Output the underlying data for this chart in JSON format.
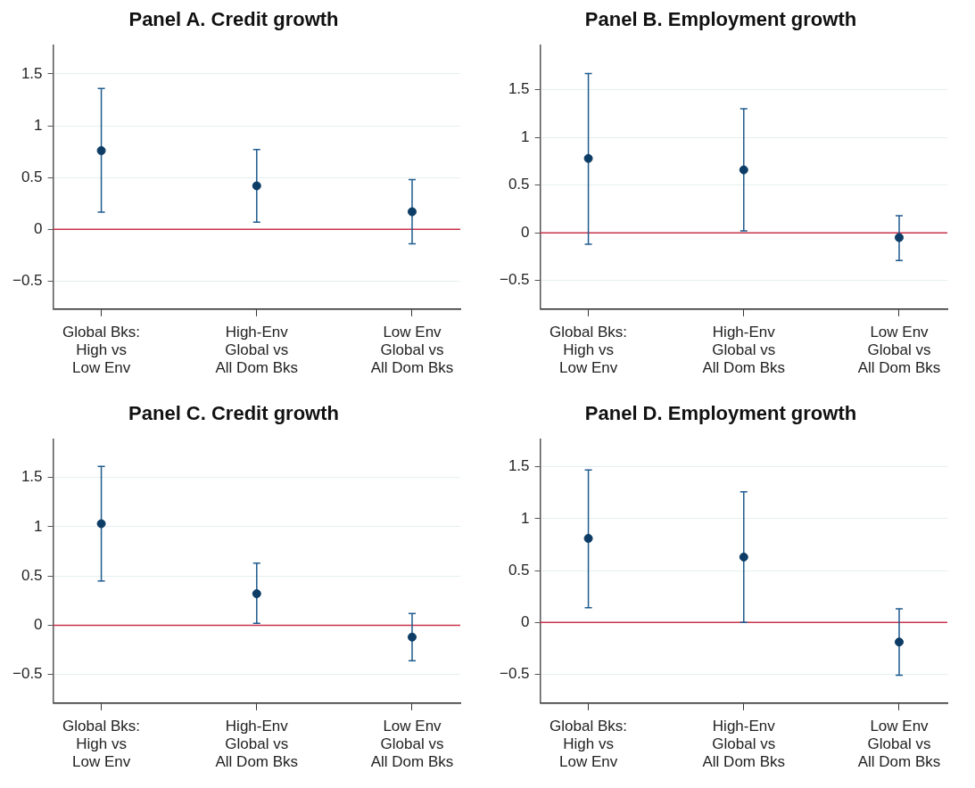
{
  "chart_data": [
    {
      "type": "scatter",
      "title": "Panel A. Credit growth",
      "categories": [
        "Global Bks:\nHigh vs\nLow Env",
        "High-Env\nGlobal vs\nAll Dom Bks",
        "Low Env\nGlobal vs\nAll Dom Bks"
      ],
      "series": [
        {
          "color": "#0d3d66",
          "values": [
            0.76,
            0.42,
            0.17
          ],
          "errors": [
            [
              0.165,
              1.36
            ],
            [
              0.07,
              0.77
            ],
            [
              -0.14,
              0.48
            ]
          ]
        }
      ],
      "ylim": [
        -0.77,
        1.78
      ],
      "yticks": [
        -0.5,
        0,
        0.5,
        1,
        1.5
      ],
      "grid": "y",
      "marker": "circle",
      "legend": false,
      "ref_lines": [
        {
          "axis": "y",
          "value": 0,
          "color": "#c8334a"
        }
      ]
    },
    {
      "type": "scatter",
      "title": "Panel B. Employment growth",
      "categories": [
        "Global Bks:\nHigh vs\nLow Env",
        "High-Env\nGlobal vs\nAll Dom Bks",
        "Low Env\nGlobal vs\nAll Dom Bks"
      ],
      "series": [
        {
          "color": "#0d3d66",
          "values": [
            0.78,
            0.66,
            -0.05
          ],
          "errors": [
            [
              -0.12,
              1.67
            ],
            [
              0.02,
              1.3
            ],
            [
              -0.29,
              0.18
            ]
          ]
        }
      ],
      "ylim": [
        -0.8,
        1.97
      ],
      "yticks": [
        -0.5,
        0,
        0.5,
        1,
        1.5
      ],
      "grid": "y",
      "marker": "circle",
      "legend": false,
      "ref_lines": [
        {
          "axis": "y",
          "value": 0,
          "color": "#c8334a"
        }
      ]
    },
    {
      "type": "scatter",
      "title": "Panel C. Credit growth",
      "categories": [
        "Global Bks:\nHigh vs\nLow Env",
        "High-Env\nGlobal vs\nAll Dom Bks",
        "Low Env\nGlobal vs\nAll Dom Bks"
      ],
      "series": [
        {
          "color": "#0d3d66",
          "values": [
            1.03,
            0.32,
            -0.12
          ],
          "errors": [
            [
              0.45,
              1.61
            ],
            [
              0.02,
              0.63
            ],
            [
              -0.36,
              0.12
            ]
          ]
        }
      ],
      "ylim": [
        -0.79,
        1.89
      ],
      "yticks": [
        -0.5,
        0,
        0.5,
        1,
        1.5
      ],
      "grid": "y",
      "marker": "circle",
      "legend": false,
      "ref_lines": [
        {
          "axis": "y",
          "value": 0,
          "color": "#c8334a"
        }
      ]
    },
    {
      "type": "scatter",
      "title": "Panel D. Employment growth",
      "categories": [
        "Global Bks:\nHigh vs\nLow Env",
        "High-Env\nGlobal vs\nAll Dom Bks",
        "Low Env\nGlobal vs\nAll Dom Bks"
      ],
      "series": [
        {
          "color": "#0d3d66",
          "values": [
            0.81,
            0.63,
            -0.19
          ],
          "errors": [
            [
              0.14,
              1.47
            ],
            [
              0,
              1.26
            ],
            [
              -0.51,
              0.13
            ]
          ]
        }
      ],
      "ylim": [
        -0.78,
        1.77
      ],
      "yticks": [
        -0.5,
        0,
        0.5,
        1,
        1.5
      ],
      "grid": "y",
      "marker": "circle",
      "legend": false,
      "ref_lines": [
        {
          "axis": "y",
          "value": 0,
          "color": "#c8334a"
        }
      ]
    }
  ]
}
